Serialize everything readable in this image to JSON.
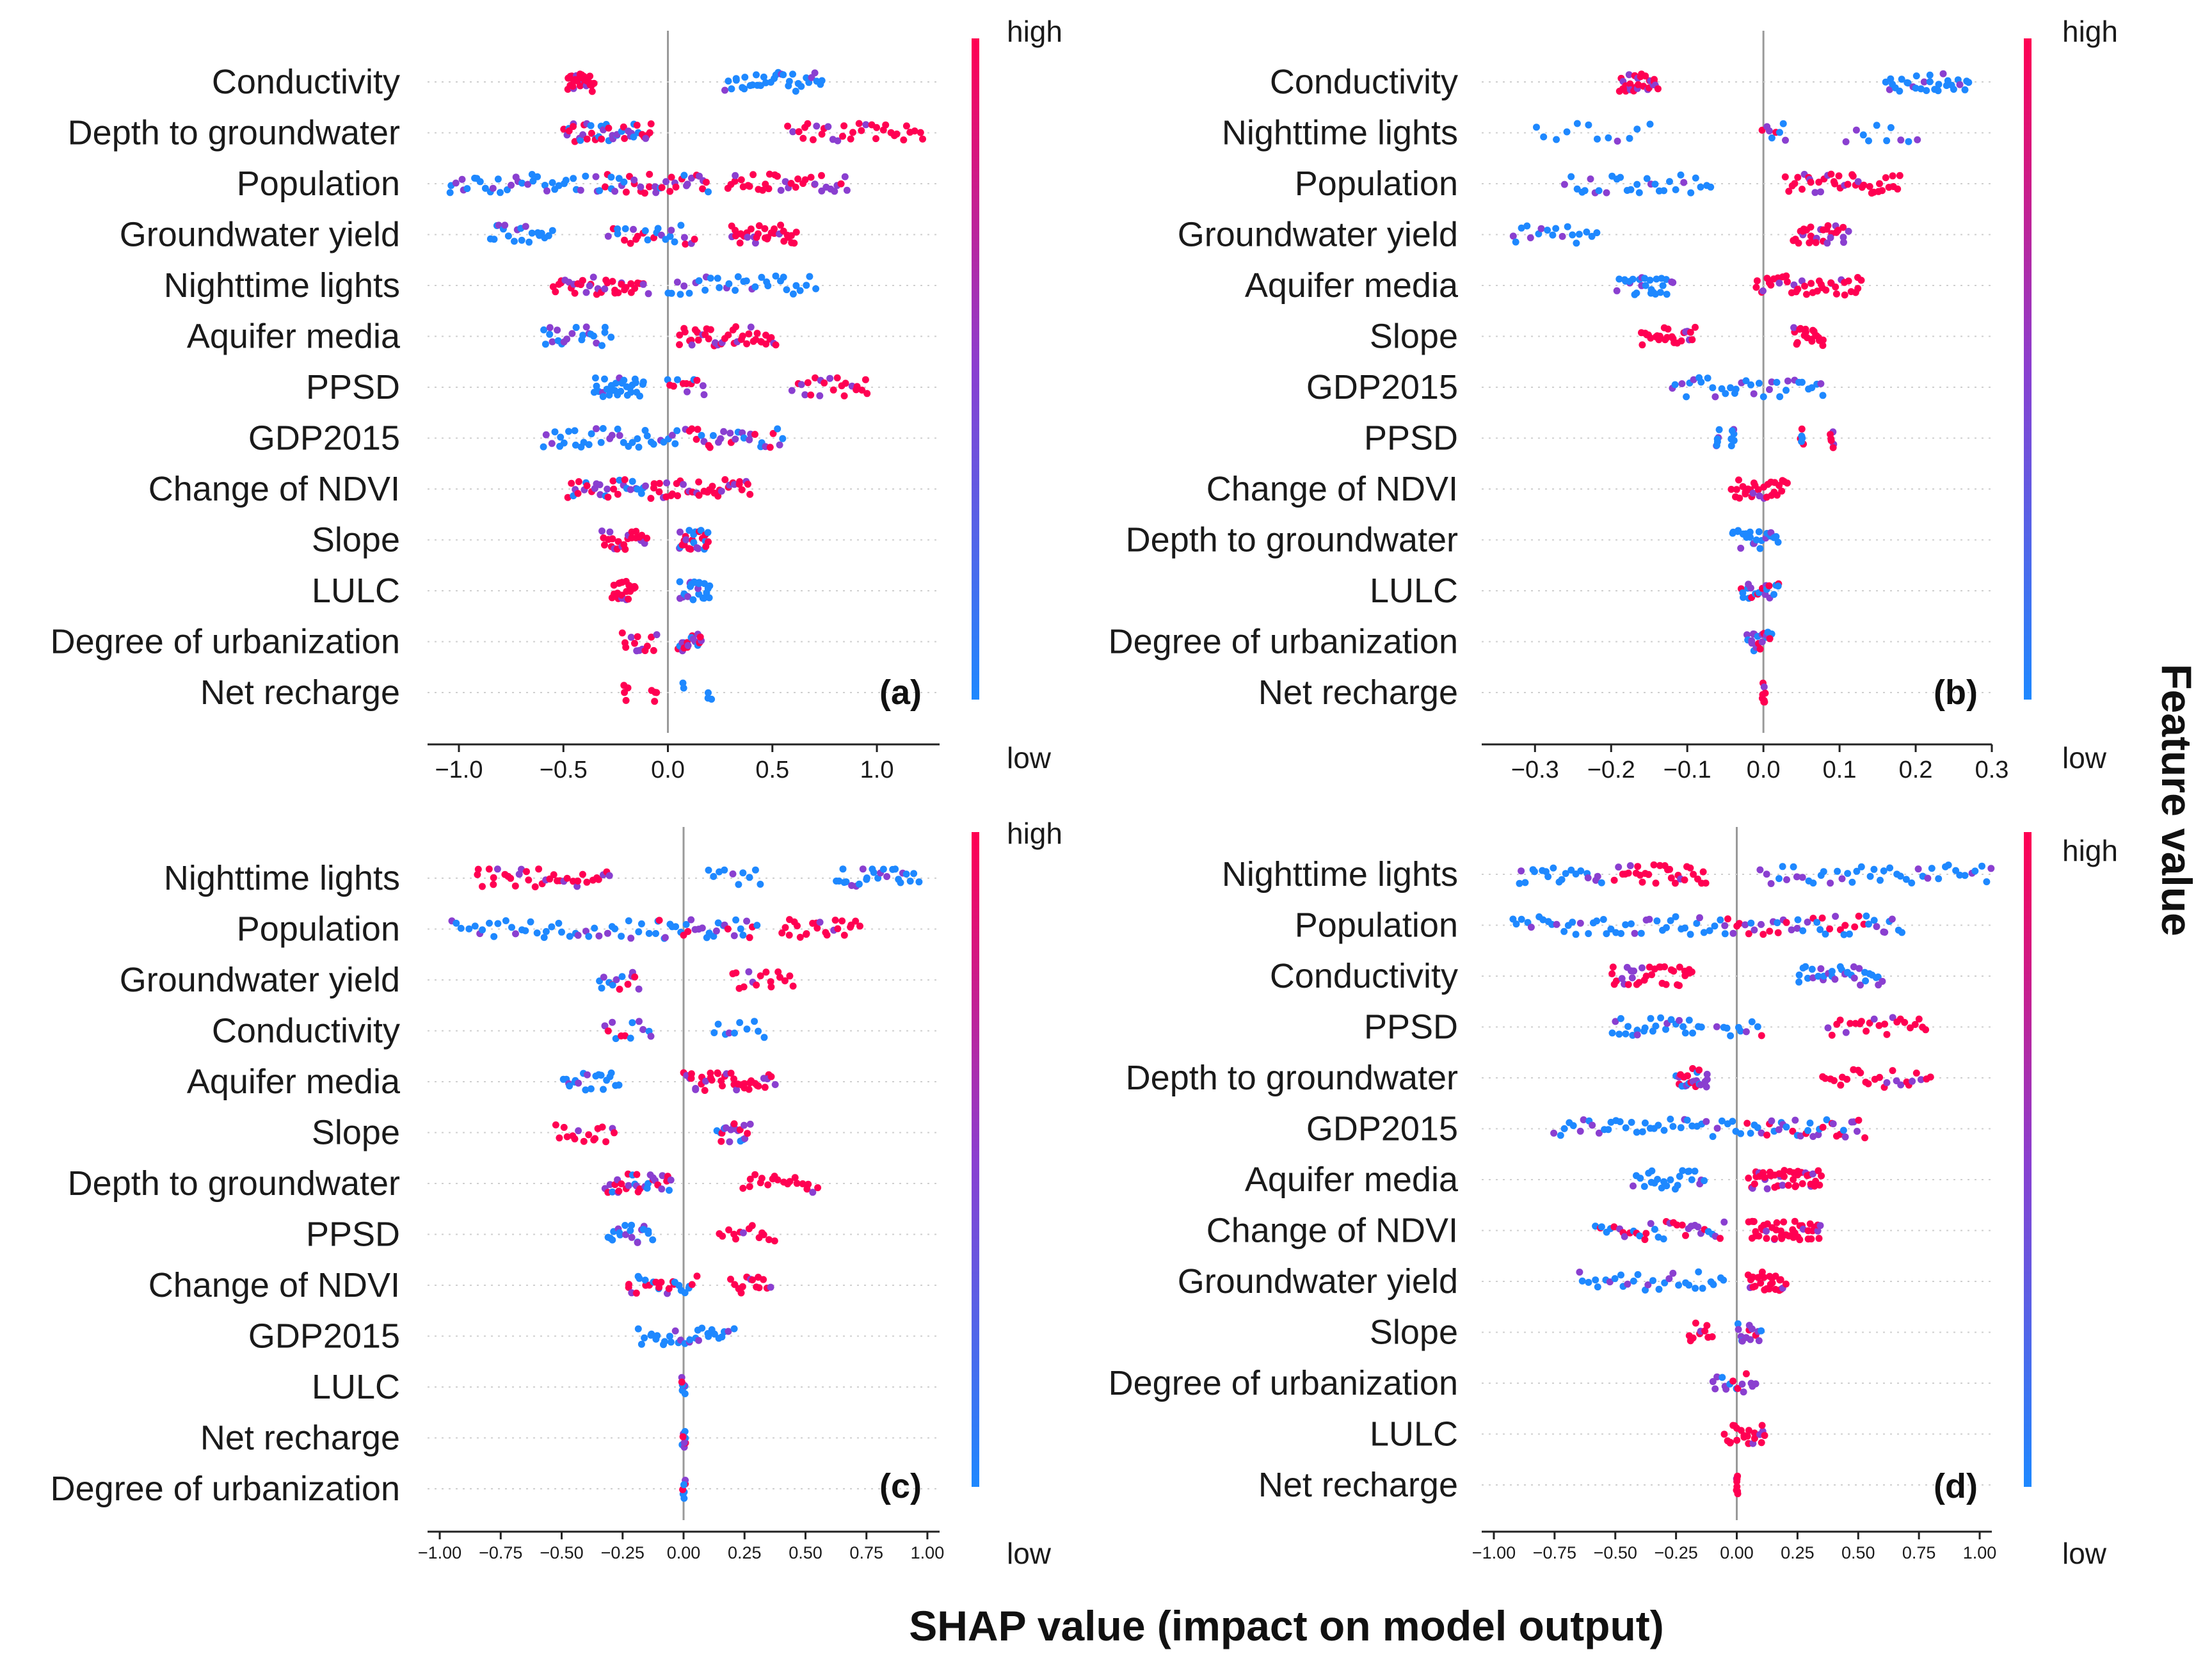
{
  "figure": {
    "xlabel": "SHAP value (impact on model output)",
    "colorbar_title": "Feature value",
    "colorbar_high": "high",
    "colorbar_low": "low",
    "color_low": "#1e88ff",
    "color_mid": "#8a3fd0",
    "color_high": "#ff0052"
  },
  "chart_data": [
    {
      "panel": "(a)",
      "type": "scatter",
      "subtype": "shap_beeswarm",
      "xlim": [
        -1.15,
        1.3
      ],
      "ticks": [
        -1.0,
        -0.5,
        0.0,
        0.5,
        1.0
      ],
      "tick_labels": [
        "−1.0",
        "−0.5",
        "0.0",
        "0.5",
        "1.0"
      ],
      "features": [
        {
          "name": "Conductivity",
          "clusters": [
            [
              -0.48,
              -0.36,
              "high",
              34
            ],
            [
              0.28,
              0.74,
              "low",
              34
            ]
          ]
        },
        {
          "name": "Depth to groundwater",
          "clusters": [
            [
              -0.5,
              -0.08,
              "mid",
              44
            ],
            [
              0.58,
              1.22,
              "high",
              34
            ]
          ]
        },
        {
          "name": "Population",
          "clusters": [
            [
              -1.05,
              -0.4,
              "low",
              34
            ],
            [
              -0.35,
              0.2,
              "mid",
              40
            ],
            [
              0.28,
              0.86,
              "high",
              36
            ]
          ]
        },
        {
          "name": "Groundwater yield",
          "clusters": [
            [
              -0.85,
              -0.55,
              "low",
              20
            ],
            [
              -0.28,
              0.12,
              "mid",
              26
            ],
            [
              0.3,
              0.62,
              "high",
              32
            ]
          ]
        },
        {
          "name": "Nighttime lights",
          "clusters": [
            [
              -0.55,
              -0.1,
              "high",
              40
            ],
            [
              0.0,
              0.7,
              "low",
              34
            ]
          ]
        },
        {
          "name": "Aquifer media",
          "clusters": [
            [
              -0.6,
              -0.28,
              "low",
              24
            ],
            [
              0.05,
              0.52,
              "high",
              42
            ]
          ]
        },
        {
          "name": "PPSD",
          "clusters": [
            [
              -0.35,
              -0.12,
              "low",
              30
            ],
            [
              0.0,
              0.18,
              "mid",
              12
            ],
            [
              0.6,
              0.96,
              "high",
              22
            ]
          ]
        },
        {
          "name": "GDP2015",
          "clusters": [
            [
              -0.6,
              0.05,
              "low",
              36
            ],
            [
              0.08,
              0.55,
              "mid",
              30
            ]
          ]
        },
        {
          "name": "Change of NDVI",
          "clusters": [
            [
              -0.48,
              -0.12,
              "mid",
              30
            ],
            [
              -0.1,
              0.4,
              "high",
              40
            ]
          ]
        },
        {
          "name": "Slope",
          "clusters": [
            [
              -0.32,
              -0.1,
              "high",
              24
            ],
            [
              0.05,
              0.2,
              "mid",
              26
            ]
          ]
        },
        {
          "name": "LULC",
          "clusters": [
            [
              -0.26,
              -0.16,
              "high",
              22
            ],
            [
              0.06,
              0.2,
              "low",
              24
            ]
          ]
        },
        {
          "name": "Degree of urbanization",
          "clusters": [
            [
              -0.22,
              -0.05,
              "high",
              14
            ],
            [
              0.05,
              0.16,
              "mid",
              18
            ]
          ]
        },
        {
          "name": "Net recharge",
          "clusters": [
            [
              -0.21,
              -0.2,
              "high",
              4
            ],
            [
              -0.07,
              -0.06,
              "high",
              4
            ],
            [
              0.07,
              0.08,
              "low",
              2
            ],
            [
              0.19,
              0.2,
              "low",
              3
            ]
          ]
        }
      ]
    },
    {
      "panel": "(b)",
      "type": "scatter",
      "subtype": "shap_beeswarm",
      "xlim": [
        -0.37,
        0.3
      ],
      "ticks": [
        -0.3,
        -0.2,
        -0.1,
        0.0,
        0.1,
        0.2,
        0.3
      ],
      "tick_labels": [
        "−0.3",
        "−0.2",
        "−0.1",
        "0.0",
        "0.1",
        "0.2",
        "0.3"
      ],
      "features": [
        {
          "name": "Conductivity",
          "clusters": [
            [
              -0.19,
              -0.14,
              "high",
              30
            ],
            [
              0.16,
              0.27,
              "low",
              30
            ]
          ]
        },
        {
          "name": "Nighttime lights",
          "clusters": [
            [
              -0.3,
              -0.15,
              "low",
              12
            ],
            [
              0.0,
              0.03,
              "mid",
              8
            ],
            [
              0.11,
              0.2,
              "low",
              10
            ]
          ]
        },
        {
          "name": "Population",
          "clusters": [
            [
              -0.26,
              -0.07,
              "low",
              30
            ],
            [
              0.03,
              0.18,
              "high",
              40
            ]
          ]
        },
        {
          "name": "Groundwater yield",
          "clusters": [
            [
              -0.33,
              -0.22,
              "low",
              18
            ],
            [
              0.04,
              0.11,
              "high",
              30
            ]
          ]
        },
        {
          "name": "Aquifer media",
          "clusters": [
            [
              -0.19,
              -0.12,
              "low",
              28
            ],
            [
              -0.01,
              0.13,
              "high",
              40
            ]
          ]
        },
        {
          "name": "Slope",
          "clusters": [
            [
              -0.16,
              -0.09,
              "high",
              26
            ],
            [
              0.04,
              0.08,
              "high",
              22
            ]
          ]
        },
        {
          "name": "GDP2015",
          "clusters": [
            [
              -0.12,
              0.08,
              "low",
              36
            ]
          ]
        },
        {
          "name": "PPSD",
          "clusters": [
            [
              -0.06,
              -0.06,
              "low",
              6
            ],
            [
              -0.04,
              -0.04,
              "low",
              6
            ],
            [
              0.05,
              0.05,
              "mid",
              6
            ],
            [
              0.09,
              0.09,
              "high",
              6
            ]
          ]
        },
        {
          "name": "Change of NDVI",
          "clusters": [
            [
              -0.04,
              0.03,
              "high",
              30
            ]
          ]
        },
        {
          "name": "Depth to groundwater",
          "clusters": [
            [
              -0.04,
              0.02,
              "low",
              24
            ]
          ]
        },
        {
          "name": "LULC",
          "clusters": [
            [
              -0.03,
              0.02,
              "mid",
              22
            ]
          ]
        },
        {
          "name": "Degree of urbanization",
          "clusters": [
            [
              -0.02,
              0.01,
              "mid",
              20
            ]
          ]
        },
        {
          "name": "Net recharge",
          "clusters": [
            [
              0.0,
              0.0,
              "high",
              8
            ]
          ]
        }
      ]
    },
    {
      "panel": "(c)",
      "type": "scatter",
      "subtype": "shap_beeswarm",
      "xlim": [
        -1.05,
        1.05
      ],
      "ticks": [
        -1.0,
        -0.75,
        -0.5,
        -0.25,
        0.0,
        0.25,
        0.5,
        0.75,
        1.0
      ],
      "tick_labels": [
        "−1.00",
        "−0.75",
        "−0.50",
        "−0.25",
        "0.00",
        "0.25",
        "0.50",
        "0.75",
        "1.00"
      ],
      "features": [
        {
          "name": "Nighttime lights",
          "clusters": [
            [
              -0.85,
              -0.3,
              "high",
              36
            ],
            [
              0.1,
              0.32,
              "low",
              10
            ],
            [
              0.62,
              0.96,
              "low",
              26
            ]
          ]
        },
        {
          "name": "Population",
          "clusters": [
            [
              -0.95,
              -0.1,
              "low",
              40
            ],
            [
              -0.1,
              0.3,
              "mid",
              30
            ],
            [
              0.4,
              0.72,
              "high",
              24
            ]
          ]
        },
        {
          "name": "Groundwater yield",
          "clusters": [
            [
              -0.35,
              -0.18,
              "mid",
              14
            ],
            [
              0.2,
              0.45,
              "high",
              16
            ]
          ]
        },
        {
          "name": "Conductivity",
          "clusters": [
            [
              -0.33,
              -0.13,
              "mid",
              12
            ],
            [
              0.12,
              0.33,
              "low",
              10
            ]
          ]
        },
        {
          "name": "Aquifer media",
          "clusters": [
            [
              -0.5,
              -0.27,
              "low",
              20
            ],
            [
              0.0,
              0.37,
              "high",
              40
            ]
          ]
        },
        {
          "name": "Slope",
          "clusters": [
            [
              -0.52,
              -0.28,
              "high",
              16
            ],
            [
              0.14,
              0.27,
              "mid",
              20
            ]
          ]
        },
        {
          "name": "Depth to groundwater",
          "clusters": [
            [
              -0.32,
              -0.05,
              "mid",
              32
            ],
            [
              0.25,
              0.55,
              "high",
              20
            ]
          ]
        },
        {
          "name": "PPSD",
          "clusters": [
            [
              -0.31,
              -0.13,
              "low",
              20
            ],
            [
              0.15,
              0.37,
              "high",
              14
            ]
          ]
        },
        {
          "name": "Change of NDVI",
          "clusters": [
            [
              -0.23,
              0.05,
              "mid",
              26
            ],
            [
              0.2,
              0.35,
              "high",
              14
            ]
          ]
        },
        {
          "name": "GDP2015",
          "clusters": [
            [
              -0.18,
              0.2,
              "low",
              30
            ]
          ]
        },
        {
          "name": "LULC",
          "clusters": [
            [
              0.0,
              0.0,
              "mid",
              8
            ]
          ]
        },
        {
          "name": "Net recharge",
          "clusters": [
            [
              0.0,
              0.0,
              "mid",
              8
            ]
          ]
        },
        {
          "name": "Degree of urbanization",
          "clusters": [
            [
              0.0,
              0.0,
              "mid",
              8
            ]
          ]
        }
      ]
    },
    {
      "panel": "(d)",
      "type": "scatter",
      "subtype": "shap_beeswarm",
      "xlim": [
        -1.05,
        1.05
      ],
      "ticks": [
        -1.0,
        -0.75,
        -0.5,
        -0.25,
        0.0,
        0.25,
        0.5,
        0.75,
        1.0
      ],
      "tick_labels": [
        "−1.00",
        "−0.75",
        "−0.50",
        "−0.25",
        "0.00",
        "0.25",
        "0.50",
        "0.75",
        "1.00"
      ],
      "features": [
        {
          "name": "Nighttime lights",
          "clusters": [
            [
              -0.9,
              -0.55,
              "low",
              20
            ],
            [
              -0.5,
              -0.12,
              "high",
              30
            ],
            [
              0.1,
              1.05,
              "low",
              44
            ]
          ]
        },
        {
          "name": "Population",
          "clusters": [
            [
              -0.92,
              -0.05,
              "low",
              44
            ],
            [
              -0.05,
              0.68,
              "mid",
              46
            ]
          ]
        },
        {
          "name": "Conductivity",
          "clusters": [
            [
              -0.52,
              -0.18,
              "high",
              34
            ],
            [
              0.25,
              0.6,
              "low",
              32
            ]
          ]
        },
        {
          "name": "PPSD",
          "clusters": [
            [
              -0.52,
              -0.15,
              "low",
              26
            ],
            [
              -0.08,
              0.1,
              "mid",
              10
            ],
            [
              0.38,
              0.78,
              "high",
              24
            ]
          ]
        },
        {
          "name": "Depth to groundwater",
          "clusters": [
            [
              -0.25,
              -0.12,
              "mid",
              24
            ],
            [
              0.35,
              0.8,
              "high",
              26
            ]
          ]
        },
        {
          "name": "GDP2015",
          "clusters": [
            [
              -0.75,
              0.02,
              "low",
              40
            ],
            [
              0.05,
              0.52,
              "mid",
              36
            ]
          ]
        },
        {
          "name": "Aquifer media",
          "clusters": [
            [
              -0.42,
              -0.13,
              "low",
              24
            ],
            [
              0.05,
              0.35,
              "high",
              44
            ]
          ]
        },
        {
          "name": "Change of NDVI",
          "clusters": [
            [
              -0.58,
              -0.05,
              "mid",
              36
            ],
            [
              0.05,
              0.35,
              "high",
              44
            ]
          ]
        },
        {
          "name": "Groundwater yield",
          "clusters": [
            [
              -0.65,
              -0.05,
              "low",
              30
            ],
            [
              0.05,
              0.2,
              "high",
              26
            ]
          ]
        },
        {
          "name": "Slope",
          "clusters": [
            [
              -0.2,
              -0.1,
              "high",
              10
            ],
            [
              0.0,
              0.1,
              "mid",
              14
            ]
          ]
        },
        {
          "name": "Degree of urbanization",
          "clusters": [
            [
              -0.1,
              0.08,
              "mid",
              16
            ]
          ]
        },
        {
          "name": "LULC",
          "clusters": [
            [
              -0.05,
              0.12,
              "high",
              22
            ]
          ]
        },
        {
          "name": "Net recharge",
          "clusters": [
            [
              0.0,
              0.0,
              "high",
              8
            ]
          ]
        }
      ]
    }
  ]
}
